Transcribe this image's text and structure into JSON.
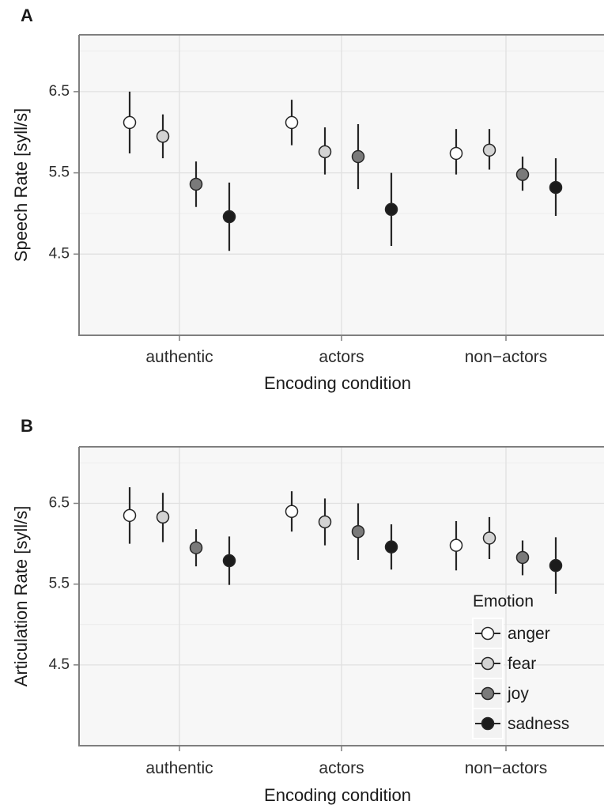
{
  "chart_data": [
    {
      "panel_label": "A",
      "type": "scatter",
      "subtype": "point-range",
      "xlabel": "Encoding condition",
      "ylabel": "Speech Rate [syll/s]",
      "categories": [
        "authentic",
        "actors",
        "non−actors"
      ],
      "yticks": [
        "4.5",
        "5.5",
        "6.5"
      ],
      "ylim": [
        3.5,
        7.2
      ],
      "grid": true,
      "series": [
        {
          "name": "anger",
          "color": "#ffffff",
          "values": [
            6.12,
            6.12,
            5.74
          ],
          "lower": [
            5.74,
            5.84,
            5.48
          ],
          "upper": [
            6.5,
            6.4,
            6.04
          ]
        },
        {
          "name": "fear",
          "color": "#d3d3d3",
          "values": [
            5.95,
            5.76,
            5.78
          ],
          "lower": [
            5.68,
            5.48,
            5.54
          ],
          "upper": [
            6.22,
            6.06,
            6.04
          ]
        },
        {
          "name": "joy",
          "color": "#7a7a7a",
          "values": [
            5.36,
            5.7,
            5.48
          ],
          "lower": [
            5.08,
            5.3,
            5.28
          ],
          "upper": [
            5.64,
            6.1,
            5.7
          ]
        },
        {
          "name": "sadness",
          "color": "#1c1c1c",
          "values": [
            4.96,
            5.05,
            5.32
          ],
          "lower": [
            4.54,
            4.6,
            4.97
          ],
          "upper": [
            5.38,
            5.5,
            5.68
          ]
        }
      ]
    },
    {
      "panel_label": "B",
      "type": "scatter",
      "subtype": "point-range",
      "xlabel": "Encoding condition",
      "ylabel": "Articulation Rate [syll/s]",
      "categories": [
        "authentic",
        "actors",
        "non−actors"
      ],
      "yticks": [
        "4.5",
        "5.5",
        "6.5"
      ],
      "ylim": [
        3.5,
        7.2
      ],
      "grid": true,
      "legend": {
        "title": "Emotion",
        "position": "bottom-right",
        "entries": [
          "anger",
          "fear",
          "joy",
          "sadness"
        ]
      },
      "series": [
        {
          "name": "anger",
          "color": "#ffffff",
          "values": [
            6.35,
            6.4,
            5.98
          ],
          "lower": [
            6.0,
            6.15,
            5.67
          ],
          "upper": [
            6.7,
            6.65,
            6.28
          ]
        },
        {
          "name": "fear",
          "color": "#d3d3d3",
          "values": [
            6.33,
            6.27,
            6.07
          ],
          "lower": [
            6.02,
            5.98,
            5.81
          ],
          "upper": [
            6.63,
            6.56,
            6.33
          ]
        },
        {
          "name": "joy",
          "color": "#7a7a7a",
          "values": [
            5.95,
            6.15,
            5.83
          ],
          "lower": [
            5.72,
            5.8,
            5.61
          ],
          "upper": [
            6.18,
            6.5,
            6.04
          ]
        },
        {
          "name": "sadness",
          "color": "#1c1c1c",
          "values": [
            5.79,
            5.96,
            5.73
          ],
          "lower": [
            5.49,
            5.68,
            5.38
          ],
          "upper": [
            6.09,
            6.24,
            6.08
          ]
        }
      ]
    }
  ]
}
